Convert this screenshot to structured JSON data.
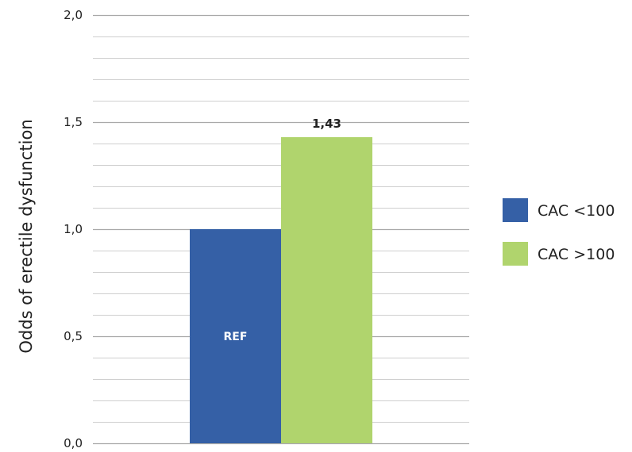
{
  "chart_data": {
    "type": "bar",
    "title": "",
    "xlabel": "",
    "ylabel": "Odds of erectile dysfunction",
    "ylim": [
      0,
      2.0
    ],
    "y_major_ticks": [
      0,
      0.5,
      1.0,
      1.5,
      2.0
    ],
    "y_tick_labels": [
      "0,0",
      "0,5",
      "1,0",
      "1,5",
      "2,0"
    ],
    "y_minor_step": 0.1,
    "grid": true,
    "legend_position": "right",
    "series": [
      {
        "name": "CAC <100",
        "value": 1.0,
        "label": "REF",
        "color": "#3560a6"
      },
      {
        "name": "CAC >100",
        "value": 1.43,
        "label": "1,43",
        "color": "#b0d46d"
      }
    ]
  }
}
